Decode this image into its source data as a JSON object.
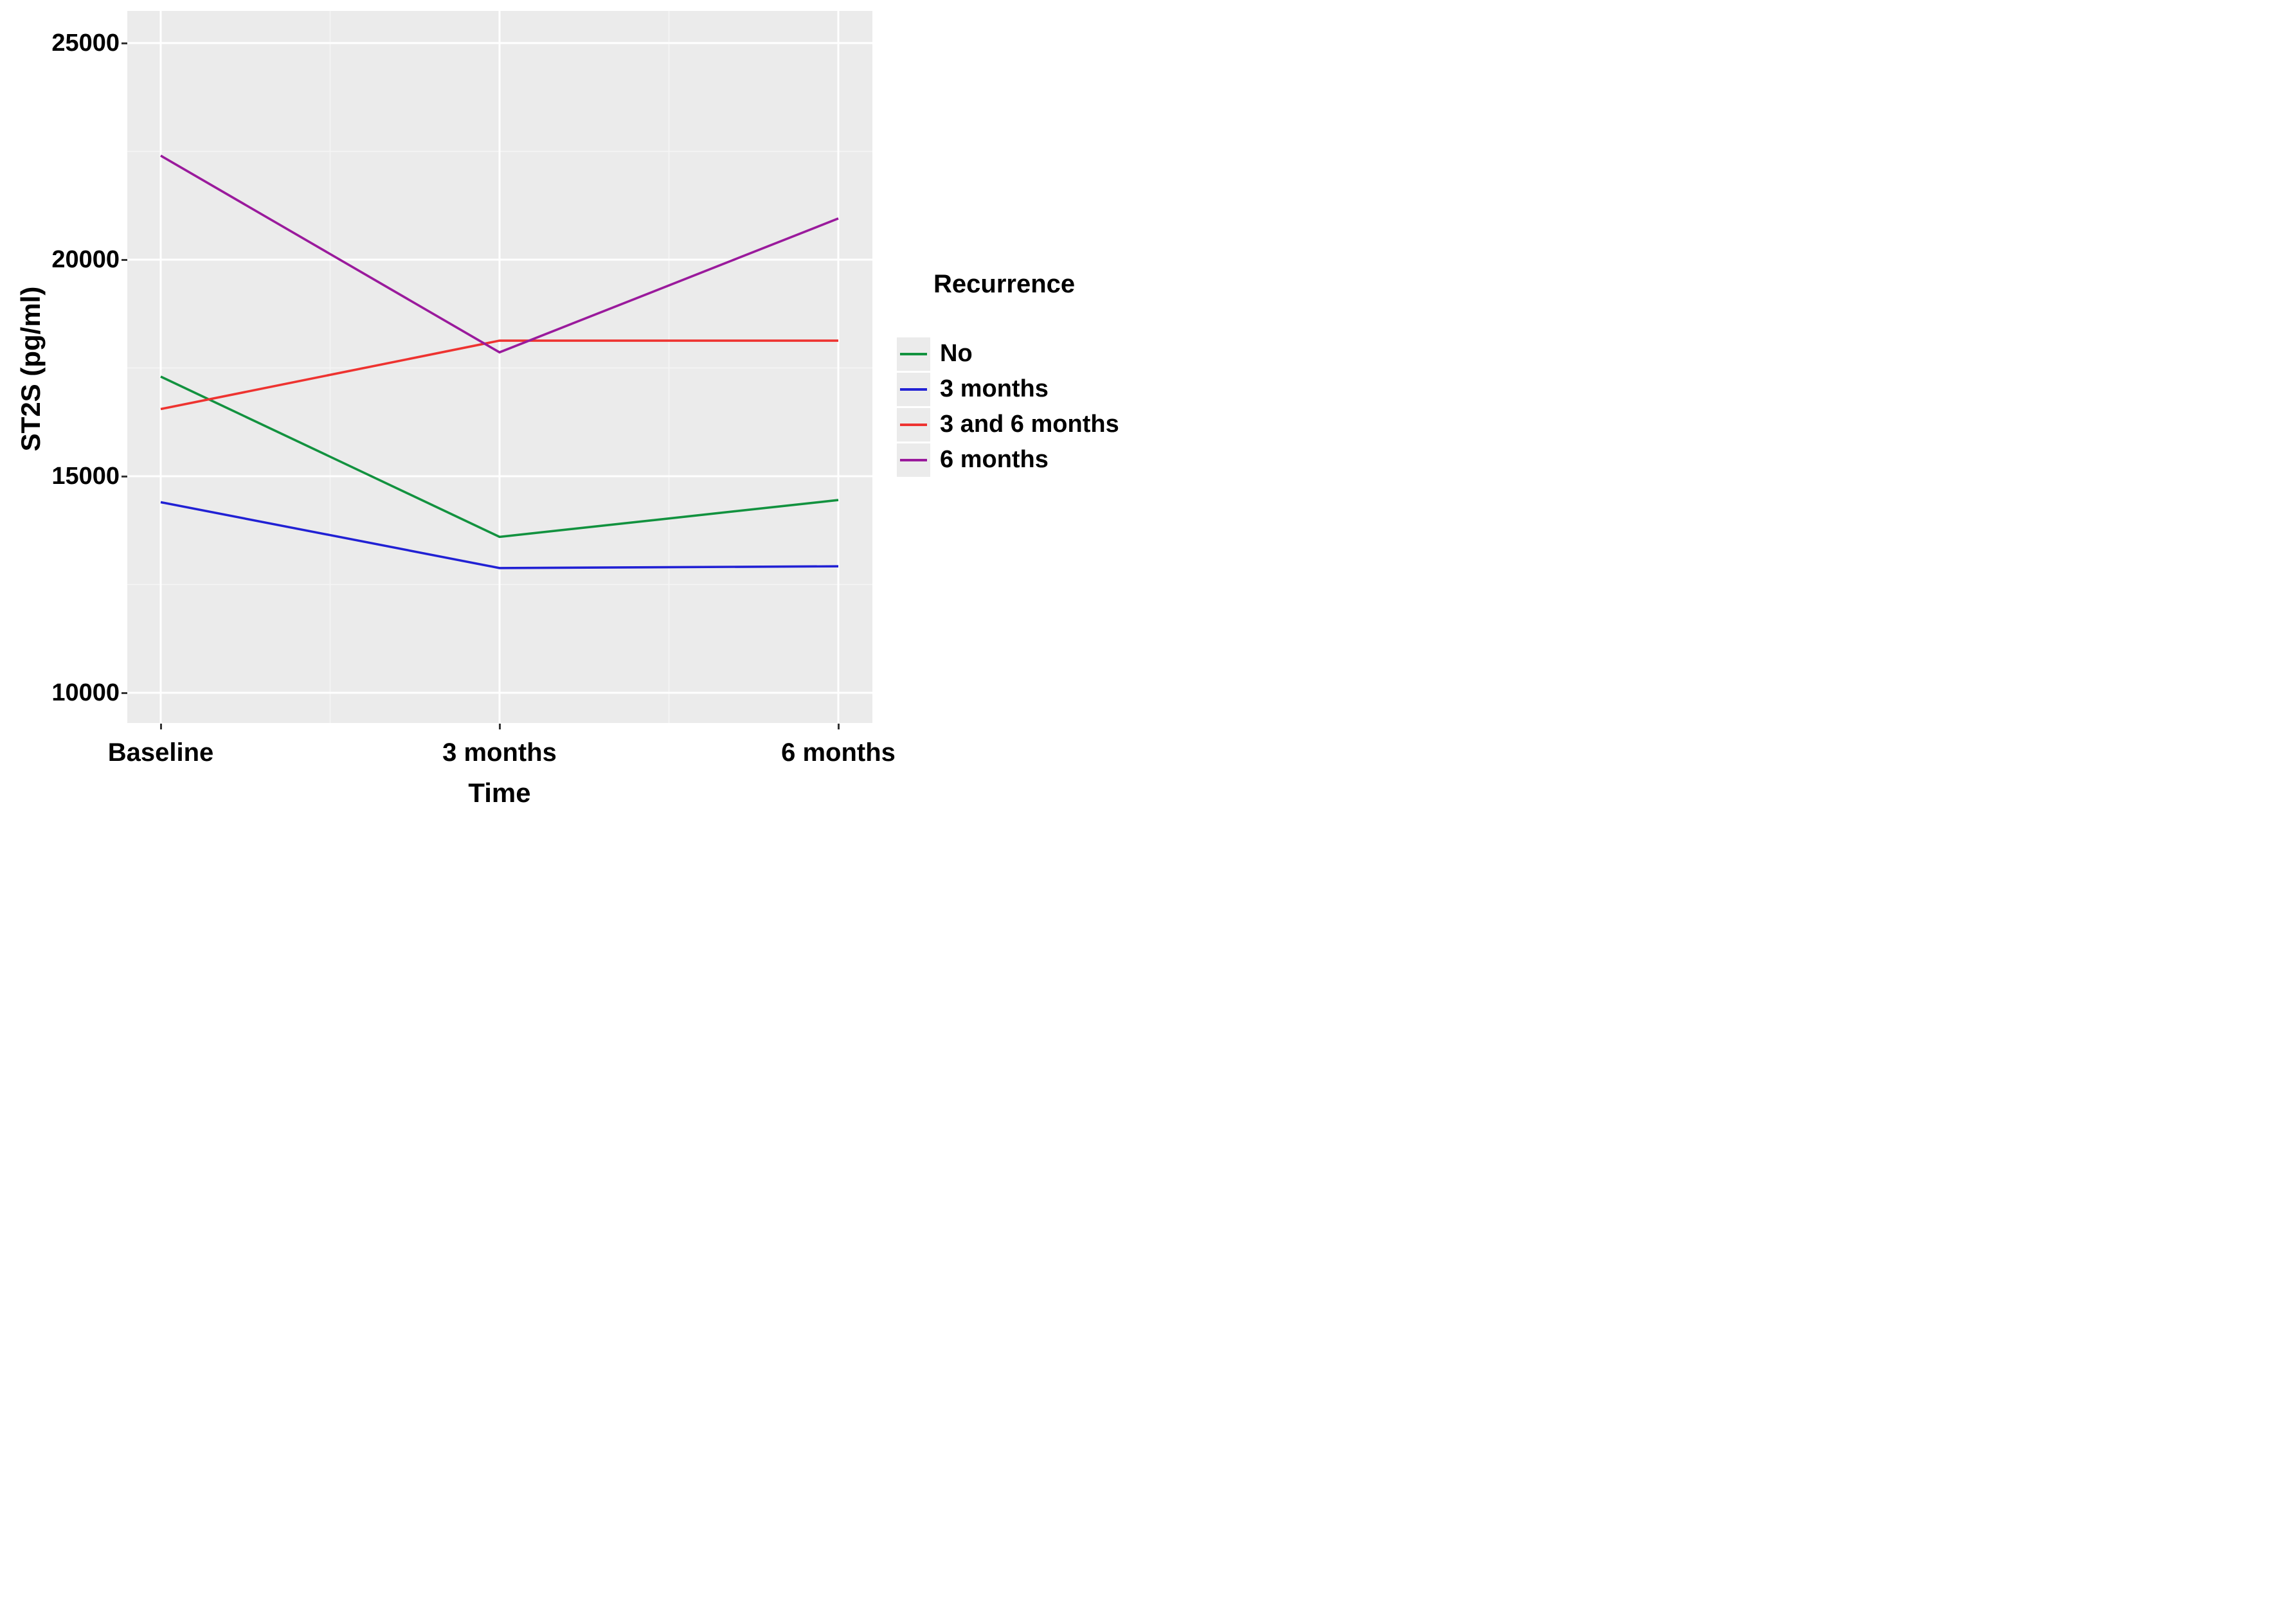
{
  "colors": {
    "panel_bg": "#EBEBEB",
    "grid_major": "#FFFFFF",
    "grid_minor": "#F7F7F7",
    "tick": "#333333",
    "text": "#000000"
  },
  "y_axis": {
    "title": "ST2S (pg/ml)",
    "tick_labels": [
      "25000",
      "20000",
      "15000",
      "10000"
    ],
    "tick_values": [
      25000,
      20000,
      15000,
      10000
    ],
    "minor_values": [
      22500,
      17500,
      12500
    ]
  },
  "x_axis": {
    "title": "Time",
    "tick_labels": [
      "Baseline",
      "3 months",
      "6 months"
    ]
  },
  "legend": {
    "title": "Recurrence",
    "entries": [
      {
        "label": "No",
        "color": "#12923F"
      },
      {
        "label": "3 months",
        "color": "#2121D4"
      },
      {
        "label": "3 and 6 months",
        "color": "#EE3330"
      },
      {
        "label": "6 months",
        "color": "#9A1A9C"
      }
    ]
  },
  "chart_data": {
    "type": "line",
    "categories": [
      "Baseline",
      "3 months",
      "6 months"
    ],
    "series": [
      {
        "name": "No",
        "color": "#12923F",
        "values": [
          17300,
          13600,
          14450
        ]
      },
      {
        "name": "3 months",
        "color": "#2121D4",
        "values": [
          14400,
          12880,
          12920
        ]
      },
      {
        "name": "3 and 6 months",
        "color": "#EE3330",
        "values": [
          16550,
          18130,
          18130
        ]
      },
      {
        "name": "6 months",
        "color": "#9A1A9C",
        "values": [
          22400,
          17860,
          20950
        ]
      }
    ],
    "title": "",
    "xlabel": "Time",
    "ylabel": "ST2S (pg/ml)",
    "ylim": [
      9300,
      25600
    ],
    "yticks": [
      10000,
      15000,
      20000,
      25000
    ],
    "yminor": [
      12500,
      17500,
      22500
    ],
    "grid": "on",
    "legend_title": "Recurrence",
    "legend_position": "right"
  }
}
